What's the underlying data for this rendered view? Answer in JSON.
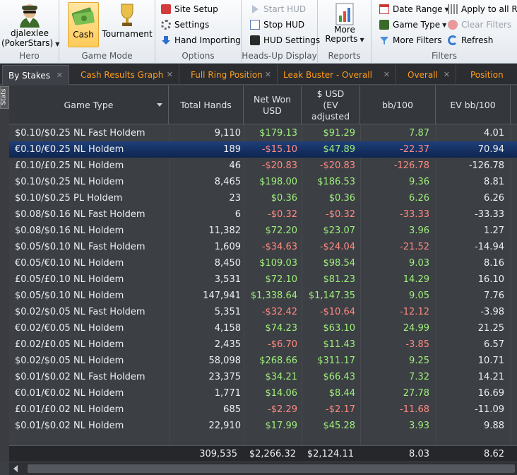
{
  "ribbon": {
    "user": {
      "name": "djalexlee",
      "site": "(PokerStars)"
    },
    "groups": {
      "hero": "Hero",
      "game_mode": "Game Mode",
      "options": "Options",
      "hud": "Heads-Up Display",
      "reports": "Reports",
      "filters": "Filters"
    },
    "game_mode": {
      "cash": "Cash",
      "tournament": "Tournament"
    },
    "options": {
      "site_setup": "Site Setup",
      "settings": "Settings",
      "hand_importing": "Hand Importing"
    },
    "hud": {
      "start": "Start HUD",
      "stop": "Stop HUD",
      "settings": "HUD Settings"
    },
    "reports": {
      "more_line1": "More",
      "more_line2": "Reports"
    },
    "filters": {
      "date_range": "Date Range",
      "game_type": "Game Type",
      "more_filters": "More Filters",
      "apply_all": "Apply to all Rep",
      "clear": "Clear Filters",
      "refresh": "Refresh"
    }
  },
  "tabs": [
    {
      "label": "By Stakes"
    },
    {
      "label": "Cash Results Graph"
    },
    {
      "label": "Full Ring Position"
    },
    {
      "label": "Leak Buster - Overall"
    },
    {
      "label": "Overall"
    },
    {
      "label": "Position"
    }
  ],
  "side_tab": "Stats",
  "columns": {
    "game_type": "Game Type",
    "total_hands": "Total Hands",
    "net_won_1": "Net Won",
    "net_won_2": "USD",
    "ev_1": "$ USD",
    "ev_2": "(EV",
    "ev_3": "adjusted",
    "bb100": "bb/100",
    "ev_bb100": "EV bb/100"
  },
  "rows": [
    {
      "game": "$0.10/$0.25 NL Fast Holdem",
      "hands": "9,110",
      "net": "$179.13",
      "ev": "$91.29",
      "bb": "7.87",
      "evbb": "4.01"
    },
    {
      "game": "€0.10/€0.25 NL Holdem",
      "hands": "189",
      "net": "-$15.10",
      "ev": "$47.89",
      "bb": "-22.37",
      "evbb": "70.94"
    },
    {
      "game": "£0.10/£0.25 NL Holdem",
      "hands": "46",
      "net": "-$20.83",
      "ev": "-$20.83",
      "bb": "-126.78",
      "evbb": "-126.78"
    },
    {
      "game": "$0.10/$0.25 NL Holdem",
      "hands": "8,465",
      "net": "$198.00",
      "ev": "$186.53",
      "bb": "9.36",
      "evbb": "8.81"
    },
    {
      "game": "$0.10/$0.25 PL Holdem",
      "hands": "23",
      "net": "$0.36",
      "ev": "$0.36",
      "bb": "6.26",
      "evbb": "6.26"
    },
    {
      "game": "$0.08/$0.16 NL Fast Holdem",
      "hands": "6",
      "net": "-$0.32",
      "ev": "-$0.32",
      "bb": "-33.33",
      "evbb": "-33.33"
    },
    {
      "game": "$0.08/$0.16 NL Holdem",
      "hands": "11,382",
      "net": "$72.20",
      "ev": "$23.07",
      "bb": "3.96",
      "evbb": "1.27"
    },
    {
      "game": "$0.05/$0.10 NL Fast Holdem",
      "hands": "1,609",
      "net": "-$34.63",
      "ev": "-$24.04",
      "bb": "-21.52",
      "evbb": "-14.94"
    },
    {
      "game": "€0.05/€0.10 NL Holdem",
      "hands": "8,450",
      "net": "$109.03",
      "ev": "$98.54",
      "bb": "9.03",
      "evbb": "8.16"
    },
    {
      "game": "£0.05/£0.10 NL Holdem",
      "hands": "3,531",
      "net": "$72.10",
      "ev": "$81.23",
      "bb": "14.29",
      "evbb": "16.10"
    },
    {
      "game": "$0.05/$0.10 NL Holdem",
      "hands": "147,941",
      "net": "$1,338.64",
      "ev": "$1,147.35",
      "bb": "9.05",
      "evbb": "7.76"
    },
    {
      "game": "$0.02/$0.05 NL Fast Holdem",
      "hands": "5,351",
      "net": "-$32.42",
      "ev": "-$10.64",
      "bb": "-12.12",
      "evbb": "-3.98"
    },
    {
      "game": "€0.02/€0.05 NL Holdem",
      "hands": "4,158",
      "net": "$74.23",
      "ev": "$63.10",
      "bb": "24.99",
      "evbb": "21.25"
    },
    {
      "game": "£0.02/£0.05 NL Holdem",
      "hands": "2,435",
      "net": "-$6.70",
      "ev": "$11.43",
      "bb": "-3.85",
      "evbb": "6.57"
    },
    {
      "game": "$0.02/$0.05 NL Holdem",
      "hands": "58,098",
      "net": "$268.66",
      "ev": "$311.17",
      "bb": "9.25",
      "evbb": "10.71"
    },
    {
      "game": "$0.01/$0.02 NL Fast Holdem",
      "hands": "23,375",
      "net": "$34.21",
      "ev": "$66.43",
      "bb": "7.32",
      "evbb": "14.21"
    },
    {
      "game": "€0.01/€0.02 NL Holdem",
      "hands": "1,771",
      "net": "$14.06",
      "ev": "$8.44",
      "bb": "27.78",
      "evbb": "16.69"
    },
    {
      "game": "£0.01/£0.02 NL Holdem",
      "hands": "685",
      "net": "-$2.29",
      "ev": "-$2.17",
      "bb": "-11.68",
      "evbb": "-11.09"
    },
    {
      "game": "$0.01/$0.02 NL Holdem",
      "hands": "22,910",
      "net": "$17.99",
      "ev": "$45.28",
      "bb": "3.93",
      "evbb": "9.88"
    }
  ],
  "totals": {
    "hands": "309,535",
    "net": "$2,266.32",
    "ev": "$2,124.11",
    "bb": "8.03",
    "evbb": "8.62"
  },
  "colors": {
    "positive": "#9ef07a",
    "negative": "#ff8a80",
    "tab_text": "#ff9c1a",
    "selected_row": "#1e3f78"
  }
}
